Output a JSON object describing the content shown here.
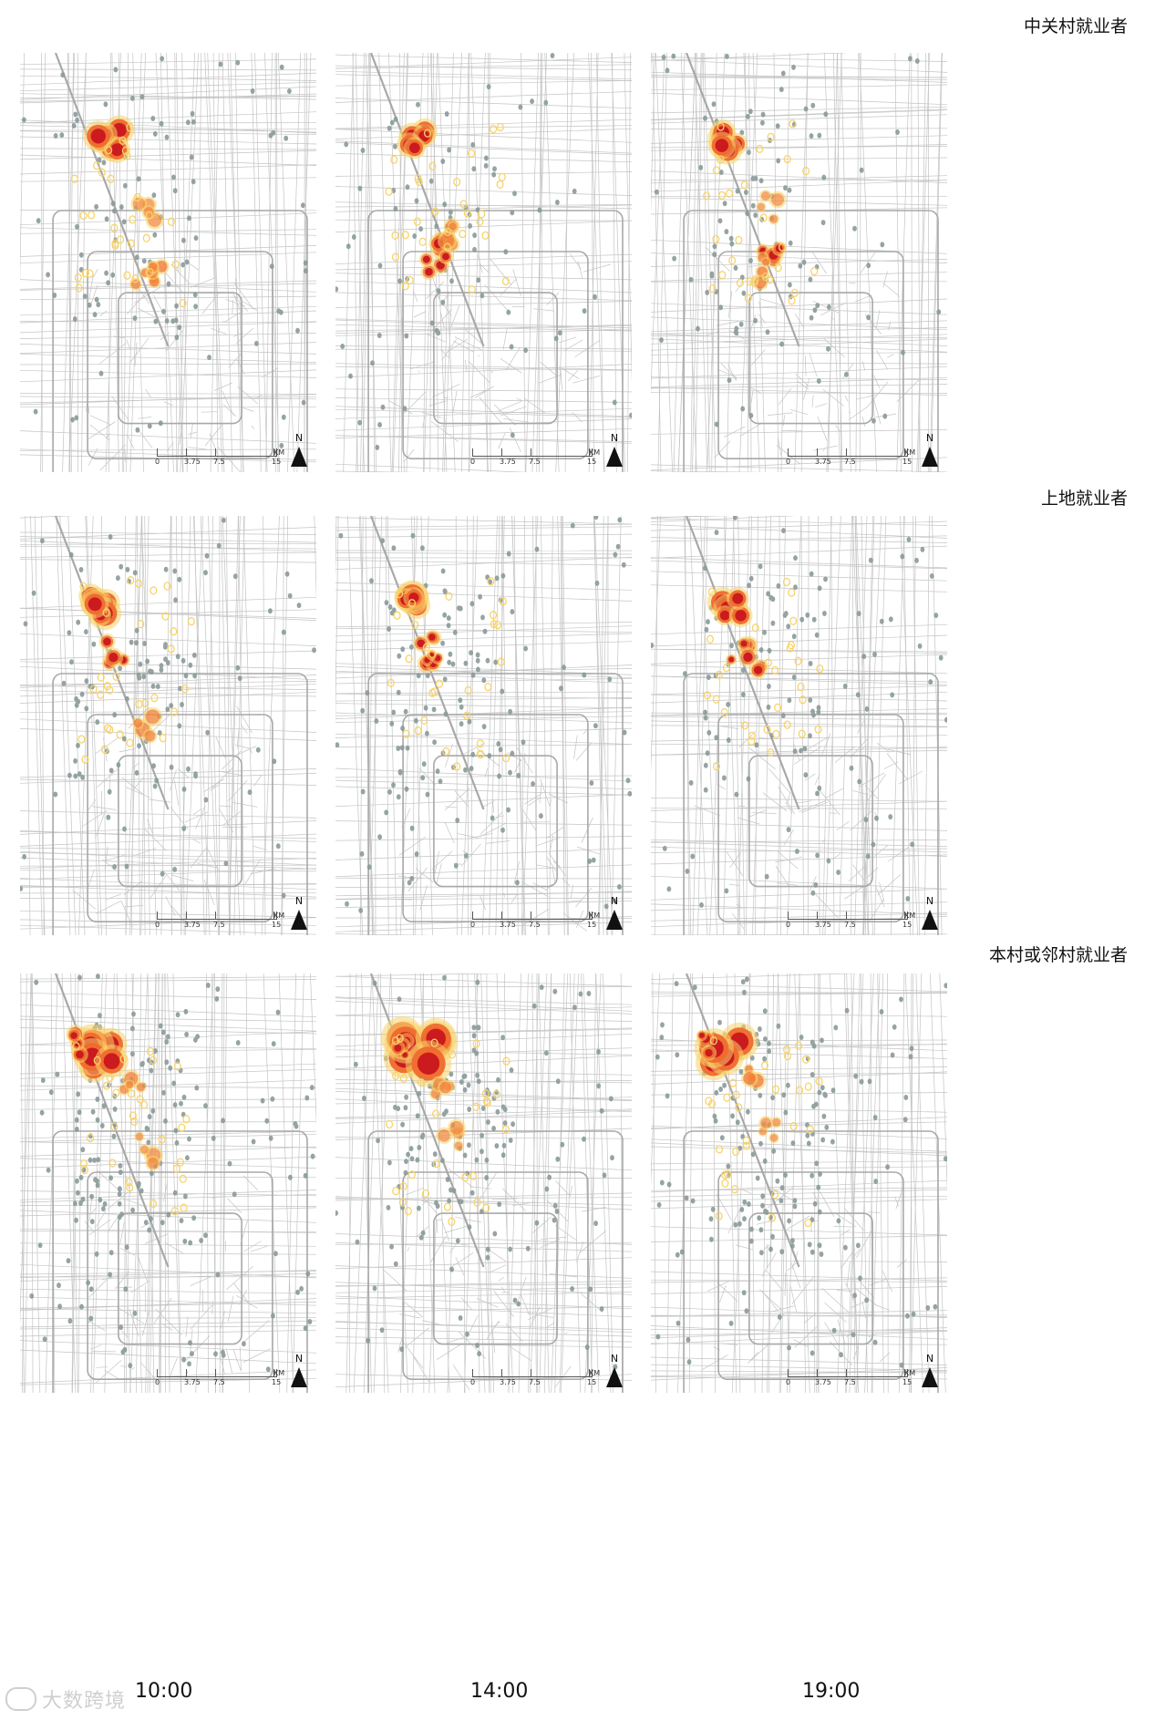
{
  "rows": [
    {
      "title": "中关村就业者"
    },
    {
      "title": "上地就业者"
    },
    {
      "title": "本村或邻村就业者"
    }
  ],
  "times": [
    "10:00",
    "14:00",
    "19:00"
  ],
  "scale": {
    "ticks": [
      "0",
      "3.75",
      "7.5",
      "15"
    ],
    "unit": "KM"
  },
  "north": "N",
  "watermark": "大数跨境",
  "colors": {
    "road": "#c4c4c4",
    "major_road": "#a8a8a8",
    "point": "#8a9a9a",
    "hot_high": "#c8161d",
    "hot_mid": "#ef6a2d",
    "hot_low": "#f8d36a"
  },
  "icons": {
    "north_arrow": "north-arrow-icon",
    "logo": "logo-icon"
  }
}
